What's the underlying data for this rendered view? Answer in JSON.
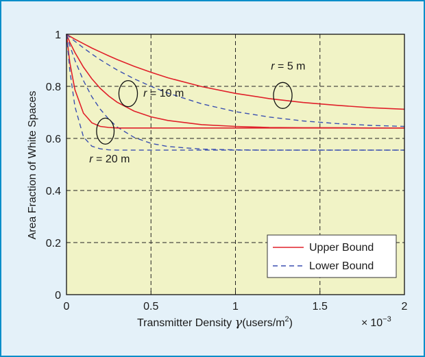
{
  "chart_data": {
    "type": "line",
    "title": "",
    "xlabel": "Transmitter Density γ (users/m²)",
    "xlabel_parts": {
      "main": "Transmitter Density ",
      "symbol": "γ",
      "unit_open": "(users/m",
      "unit_sup": "2",
      "unit_close": ")"
    },
    "x_multiplier": {
      "times": "×",
      "base": "10",
      "exp": "−3"
    },
    "ylabel": "Area Fraction of White Spaces",
    "xlim": [
      0,
      2
    ],
    "ylim": [
      0,
      1
    ],
    "xticks": [
      "0",
      "0.5",
      "1",
      "1.5",
      "2"
    ],
    "yticks": [
      "0",
      "0.2",
      "0.4",
      "0.6",
      "0.8",
      "1"
    ],
    "grid": true,
    "legend_position": "bottom-right",
    "legend": [
      {
        "label": "Upper Bound",
        "color": "#e0202a",
        "dash": "solid"
      },
      {
        "label": "Lower Bound",
        "color": "#3a4fb0",
        "dash": "dashed"
      }
    ],
    "x": [
      0,
      0.02,
      0.05,
      0.1,
      0.15,
      0.2,
      0.25,
      0.3,
      0.4,
      0.5,
      0.6,
      0.8,
      1.0,
      1.2,
      1.4,
      1.6,
      1.8,
      2.0
    ],
    "series": [
      {
        "group": "r5",
        "bound": "upper",
        "values": [
          1.0,
          0.992,
          0.981,
          0.964,
          0.947,
          0.932,
          0.917,
          0.903,
          0.877,
          0.854,
          0.833,
          0.799,
          0.773,
          0.753,
          0.738,
          0.727,
          0.718,
          0.712
        ]
      },
      {
        "group": "r5",
        "bound": "lower",
        "values": [
          1.0,
          0.989,
          0.973,
          0.948,
          0.924,
          0.902,
          0.882,
          0.863,
          0.829,
          0.8,
          0.774,
          0.733,
          0.703,
          0.682,
          0.667,
          0.657,
          0.65,
          0.646
        ]
      },
      {
        "group": "r10",
        "bound": "upper",
        "values": [
          1.0,
          0.969,
          0.93,
          0.874,
          0.829,
          0.792,
          0.763,
          0.739,
          0.705,
          0.683,
          0.669,
          0.653,
          0.646,
          0.642,
          0.641,
          0.641,
          0.64,
          0.64
        ]
      },
      {
        "group": "r10",
        "bound": "lower",
        "values": [
          1.0,
          0.956,
          0.9,
          0.822,
          0.76,
          0.712,
          0.674,
          0.644,
          0.604,
          0.581,
          0.569,
          0.559,
          0.556,
          0.555,
          0.555,
          0.555,
          0.555,
          0.555
        ]
      },
      {
        "group": "r20",
        "bound": "upper",
        "values": [
          1.0,
          0.89,
          0.787,
          0.697,
          0.66,
          0.646,
          0.642,
          0.64,
          0.64,
          0.64,
          0.64,
          0.64,
          0.64,
          0.64,
          0.64,
          0.64,
          0.64,
          0.64
        ]
      },
      {
        "group": "r20",
        "bound": "lower",
        "values": [
          1.0,
          0.86,
          0.722,
          0.606,
          0.57,
          0.56,
          0.556,
          0.555,
          0.555,
          0.555,
          0.555,
          0.555,
          0.555,
          0.555,
          0.555,
          0.555,
          0.555,
          0.555
        ]
      }
    ],
    "annotations": [
      {
        "id": "r5",
        "var": "r",
        "eq": " = ",
        "value": "5 m",
        "ellipse_center": [
          1.28,
          0.765
        ],
        "ellipse_radius": [
          0.055,
          0.05
        ],
        "text_at": [
          1.21,
          0.865
        ]
      },
      {
        "id": "r10",
        "var": "r",
        "eq": " = ",
        "value": "10 m",
        "ellipse_center": [
          0.365,
          0.772
        ],
        "ellipse_radius": [
          0.055,
          0.05
        ],
        "text_at": [
          0.455,
          0.76
        ]
      },
      {
        "id": "r20",
        "var": "r",
        "eq": " = ",
        "value": "20 m",
        "ellipse_center": [
          0.23,
          0.628
        ],
        "ellipse_radius": [
          0.052,
          0.05
        ],
        "text_at": [
          0.135,
          0.508
        ]
      }
    ]
  }
}
